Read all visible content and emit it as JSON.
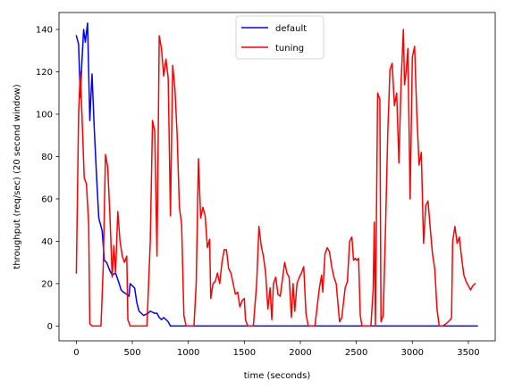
{
  "chart_data": {
    "type": "line",
    "xlabel": "time (seconds)",
    "ylabel": "throughput (req/sec) (20 second window)",
    "xlim": [
      -155,
      3740
    ],
    "ylim": [
      -7,
      148
    ],
    "xticks": [
      0,
      500,
      1000,
      1500,
      2000,
      2500,
      3000,
      3500
    ],
    "yticks": [
      0,
      20,
      40,
      60,
      80,
      100,
      120,
      140
    ],
    "grid": false,
    "legend_position": "top-center",
    "series": [
      {
        "name": "default",
        "color": "#0000ff",
        "points": [
          [
            0,
            137
          ],
          [
            20,
            133
          ],
          [
            35,
            108
          ],
          [
            50,
            125
          ],
          [
            65,
            140
          ],
          [
            80,
            134
          ],
          [
            100,
            143
          ],
          [
            120,
            97
          ],
          [
            140,
            119
          ],
          [
            160,
            93
          ],
          [
            180,
            71
          ],
          [
            200,
            51
          ],
          [
            230,
            45
          ],
          [
            250,
            31
          ],
          [
            270,
            30
          ],
          [
            300,
            26
          ],
          [
            320,
            24
          ],
          [
            350,
            25
          ],
          [
            370,
            22
          ],
          [
            400,
            17
          ],
          [
            420,
            16
          ],
          [
            450,
            15
          ],
          [
            470,
            14
          ],
          [
            480,
            20
          ],
          [
            500,
            19
          ],
          [
            520,
            18
          ],
          [
            540,
            11
          ],
          [
            560,
            7
          ],
          [
            580,
            6
          ],
          [
            600,
            5
          ],
          [
            640,
            6
          ],
          [
            660,
            7
          ],
          [
            700,
            6
          ],
          [
            720,
            6
          ],
          [
            740,
            4
          ],
          [
            760,
            3
          ],
          [
            780,
            4
          ],
          [
            800,
            3
          ],
          [
            820,
            2
          ],
          [
            840,
            0
          ],
          [
            900,
            0
          ],
          [
            1000,
            0
          ],
          [
            1500,
            0
          ],
          [
            2000,
            0
          ],
          [
            2500,
            0
          ],
          [
            3000,
            0
          ],
          [
            3580,
            0
          ]
        ]
      },
      {
        "name": "tuning",
        "color": "#ff0000",
        "points": [
          [
            0,
            25
          ],
          [
            20,
            100
          ],
          [
            35,
            120
          ],
          [
            50,
            100
          ],
          [
            70,
            70
          ],
          [
            90,
            67
          ],
          [
            110,
            48
          ],
          [
            120,
            1
          ],
          [
            140,
            0
          ],
          [
            180,
            0
          ],
          [
            220,
            0
          ],
          [
            240,
            28
          ],
          [
            260,
            81
          ],
          [
            280,
            75
          ],
          [
            300,
            52
          ],
          [
            320,
            23
          ],
          [
            335,
            38
          ],
          [
            350,
            25
          ],
          [
            370,
            54
          ],
          [
            390,
            40
          ],
          [
            410,
            33
          ],
          [
            430,
            30
          ],
          [
            450,
            33
          ],
          [
            460,
            3
          ],
          [
            480,
            0
          ],
          [
            520,
            0
          ],
          [
            580,
            0
          ],
          [
            630,
            0
          ],
          [
            660,
            40
          ],
          [
            680,
            97
          ],
          [
            700,
            92
          ],
          [
            720,
            33
          ],
          [
            740,
            137
          ],
          [
            760,
            131
          ],
          [
            780,
            118
          ],
          [
            800,
            126
          ],
          [
            820,
            117
          ],
          [
            840,
            52
          ],
          [
            860,
            123
          ],
          [
            880,
            112
          ],
          [
            900,
            90
          ],
          [
            920,
            56
          ],
          [
            940,
            48
          ],
          [
            960,
            5
          ],
          [
            980,
            0
          ],
          [
            1030,
            0
          ],
          [
            1050,
            0
          ],
          [
            1070,
            20
          ],
          [
            1090,
            79
          ],
          [
            1110,
            51
          ],
          [
            1130,
            56
          ],
          [
            1150,
            52
          ],
          [
            1170,
            37
          ],
          [
            1190,
            41
          ],
          [
            1200,
            13
          ],
          [
            1220,
            20
          ],
          [
            1240,
            21
          ],
          [
            1260,
            25
          ],
          [
            1280,
            20
          ],
          [
            1300,
            30
          ],
          [
            1320,
            36
          ],
          [
            1340,
            36
          ],
          [
            1360,
            27
          ],
          [
            1380,
            25
          ],
          [
            1400,
            20
          ],
          [
            1420,
            15
          ],
          [
            1440,
            16
          ],
          [
            1460,
            9
          ],
          [
            1480,
            12
          ],
          [
            1500,
            13
          ],
          [
            1510,
            3
          ],
          [
            1530,
            0
          ],
          [
            1560,
            0
          ],
          [
            1580,
            0
          ],
          [
            1610,
            20
          ],
          [
            1630,
            47
          ],
          [
            1650,
            38
          ],
          [
            1670,
            33
          ],
          [
            1690,
            25
          ],
          [
            1710,
            8
          ],
          [
            1730,
            18
          ],
          [
            1745,
            3
          ],
          [
            1760,
            20
          ],
          [
            1780,
            23
          ],
          [
            1800,
            15
          ],
          [
            1820,
            14
          ],
          [
            1840,
            22
          ],
          [
            1860,
            30
          ],
          [
            1880,
            25
          ],
          [
            1900,
            23
          ],
          [
            1920,
            4
          ],
          [
            1935,
            20
          ],
          [
            1950,
            7
          ],
          [
            1970,
            20
          ],
          [
            1990,
            23
          ],
          [
            2010,
            25
          ],
          [
            2030,
            28
          ],
          [
            2050,
            6
          ],
          [
            2070,
            0
          ],
          [
            2100,
            0
          ],
          [
            2130,
            0
          ],
          [
            2150,
            9
          ],
          [
            2170,
            18
          ],
          [
            2190,
            24
          ],
          [
            2200,
            16
          ],
          [
            2220,
            34
          ],
          [
            2240,
            37
          ],
          [
            2260,
            35
          ],
          [
            2280,
            28
          ],
          [
            2300,
            23
          ],
          [
            2320,
            20
          ],
          [
            2350,
            2
          ],
          [
            2370,
            4
          ],
          [
            2400,
            18
          ],
          [
            2420,
            21
          ],
          [
            2440,
            40
          ],
          [
            2460,
            42
          ],
          [
            2475,
            31
          ],
          [
            2490,
            32
          ],
          [
            2505,
            31
          ],
          [
            2520,
            32
          ],
          [
            2535,
            5
          ],
          [
            2550,
            0
          ],
          [
            2580,
            0
          ],
          [
            2600,
            0
          ],
          [
            2630,
            0
          ],
          [
            2650,
            17
          ],
          [
            2660,
            49
          ],
          [
            2670,
            0
          ],
          [
            2690,
            110
          ],
          [
            2710,
            107
          ],
          [
            2720,
            2
          ],
          [
            2740,
            5
          ],
          [
            2760,
            45
          ],
          [
            2780,
            90
          ],
          [
            2800,
            121
          ],
          [
            2820,
            124
          ],
          [
            2840,
            104
          ],
          [
            2860,
            110
          ],
          [
            2880,
            77
          ],
          [
            2900,
            116
          ],
          [
            2920,
            140
          ],
          [
            2930,
            114
          ],
          [
            2945,
            120
          ],
          [
            2960,
            131
          ],
          [
            2980,
            60
          ],
          [
            3000,
            127
          ],
          [
            3020,
            132
          ],
          [
            3040,
            100
          ],
          [
            3060,
            76
          ],
          [
            3080,
            82
          ],
          [
            3100,
            39
          ],
          [
            3120,
            57
          ],
          [
            3140,
            59
          ],
          [
            3160,
            46
          ],
          [
            3180,
            34
          ],
          [
            3200,
            27
          ],
          [
            3220,
            8
          ],
          [
            3240,
            0
          ],
          [
            3270,
            0
          ],
          [
            3300,
            1
          ],
          [
            3320,
            2
          ],
          [
            3340,
            3
          ],
          [
            3350,
            4
          ],
          [
            3360,
            40
          ],
          [
            3380,
            47
          ],
          [
            3400,
            39
          ],
          [
            3420,
            42
          ],
          [
            3440,
            32
          ],
          [
            3460,
            24
          ],
          [
            3480,
            21
          ],
          [
            3500,
            19
          ],
          [
            3520,
            17
          ],
          [
            3540,
            19
          ],
          [
            3560,
            20
          ]
        ]
      }
    ]
  }
}
